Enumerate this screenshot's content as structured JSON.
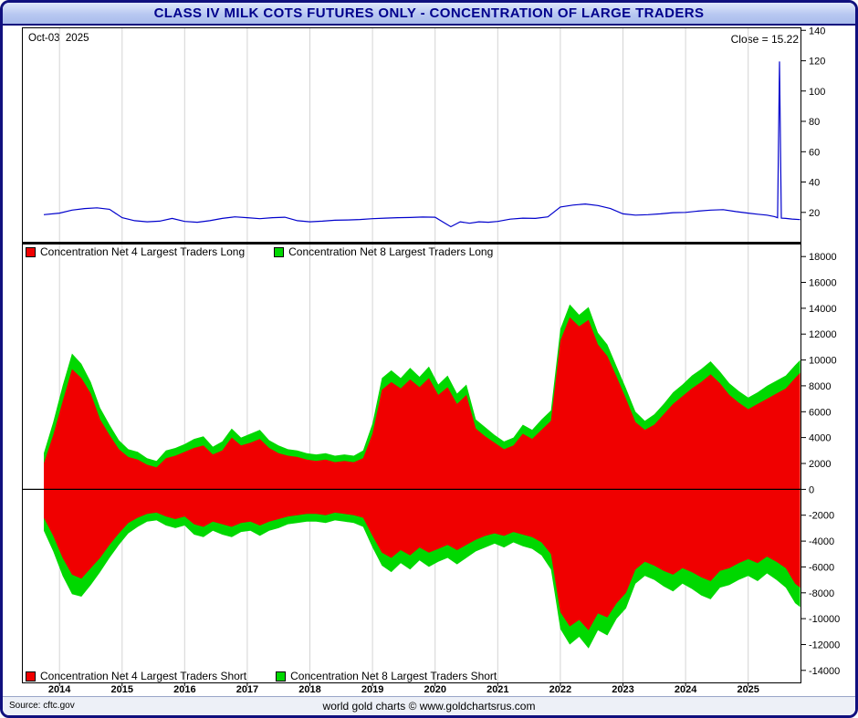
{
  "window": {
    "title": "CLASS IV MILK COTS FUTURES ONLY - CONCENTRATION OF LARGE TRADERS"
  },
  "colors": {
    "title_text": "#00008c",
    "titlebar_border": "#10107e",
    "price_line": "#0000cc",
    "net4_red": "#f00000",
    "net8_green": "#00d800",
    "grid": "#d4d4d4",
    "axis": "#000000",
    "zero_line": "#000000"
  },
  "top_panel": {
    "date_label": "Oct-03  2025",
    "close_label": "Close = 15.22"
  },
  "footer": {
    "source": "Source: cftc.gov",
    "credit": "world gold charts © www.goldchartsrus.com"
  },
  "chart_data": [
    {
      "id": "price-panel",
      "type": "line",
      "title": "Class IV Milk futures price",
      "x_range": [
        2013.4,
        2025.85
      ],
      "ylim": [
        0,
        142
      ],
      "yticks": [
        140,
        120,
        100,
        80,
        60,
        40,
        20
      ],
      "xticks": [
        2014,
        2015,
        2016,
        2017,
        2018,
        2019,
        2020,
        2021,
        2022,
        2023,
        2024,
        2025
      ],
      "grid": "vertical",
      "legend_position": "none",
      "series": [
        {
          "name": "Close",
          "color": "#0000cc",
          "x": [
            2013.75,
            2014.0,
            2014.2,
            2014.4,
            2014.6,
            2014.8,
            2015.0,
            2015.2,
            2015.4,
            2015.6,
            2015.8,
            2016.0,
            2016.2,
            2016.4,
            2016.6,
            2016.8,
            2017.0,
            2017.2,
            2017.4,
            2017.6,
            2017.8,
            2018.0,
            2018.2,
            2018.4,
            2018.6,
            2018.8,
            2019.0,
            2019.2,
            2019.4,
            2019.6,
            2019.8,
            2020.0,
            2020.15,
            2020.25,
            2020.4,
            2020.55,
            2020.7,
            2020.85,
            2021.0,
            2021.2,
            2021.4,
            2021.6,
            2021.8,
            2022.0,
            2022.2,
            2022.4,
            2022.6,
            2022.8,
            2023.0,
            2023.2,
            2023.4,
            2023.6,
            2023.8,
            2024.0,
            2024.2,
            2024.4,
            2024.6,
            2024.8,
            2025.0,
            2025.15,
            2025.3,
            2025.42,
            2025.47,
            2025.5,
            2025.53,
            2025.6,
            2025.7,
            2025.83
          ],
          "y": [
            18.5,
            19.5,
            21.5,
            22.5,
            23.0,
            22.0,
            16.5,
            14.5,
            13.8,
            14.2,
            16.0,
            14.0,
            13.5,
            14.5,
            16.0,
            17.0,
            16.5,
            15.8,
            16.5,
            16.8,
            14.5,
            13.8,
            14.2,
            14.8,
            15.0,
            15.3,
            15.8,
            16.2,
            16.5,
            16.6,
            16.9,
            16.8,
            13.0,
            10.5,
            13.8,
            12.8,
            13.8,
            13.5,
            14.0,
            15.5,
            16.2,
            16.0,
            17.0,
            23.5,
            24.8,
            25.5,
            24.5,
            22.5,
            19.0,
            18.2,
            18.5,
            19.0,
            19.8,
            20.0,
            20.8,
            21.5,
            21.8,
            20.5,
            19.5,
            18.8,
            18.2,
            17.2,
            16.5,
            119.5,
            16.2,
            16.0,
            15.6,
            15.22
          ]
        }
      ]
    },
    {
      "id": "concentration-panel",
      "type": "area",
      "title": "Concentration of Large Traders (contracts)",
      "x_range": [
        2013.4,
        2025.85
      ],
      "ylim": [
        -15000,
        19000
      ],
      "yticks": [
        18000,
        16000,
        14000,
        12000,
        10000,
        8000,
        6000,
        4000,
        2000,
        0,
        -2000,
        -4000,
        -6000,
        -8000,
        -10000,
        -12000,
        -14000
      ],
      "xticks": [
        2014,
        2015,
        2016,
        2017,
        2018,
        2019,
        2020,
        2021,
        2022,
        2023,
        2024,
        2025
      ],
      "grid": "vertical",
      "legend_top": [
        {
          "label": "Concentration Net 4 Largest Traders Long",
          "color": "#f00000"
        },
        {
          "label": "Concentration Net 8 Largest Traders Long",
          "color": "#00d800"
        }
      ],
      "legend_bottom": [
        {
          "label": "Concentration Net 4 Largest Traders Short",
          "color": "#f00000"
        },
        {
          "label": "Concentration Net 8 Largest Traders Short",
          "color": "#00d800"
        }
      ],
      "x": [
        2013.75,
        2013.9,
        2014.05,
        2014.2,
        2014.35,
        2014.5,
        2014.65,
        2014.8,
        2014.95,
        2015.1,
        2015.25,
        2015.4,
        2015.55,
        2015.7,
        2015.85,
        2016.0,
        2016.15,
        2016.3,
        2016.45,
        2016.6,
        2016.75,
        2016.9,
        2017.05,
        2017.2,
        2017.35,
        2017.5,
        2017.65,
        2017.8,
        2017.95,
        2018.1,
        2018.25,
        2018.4,
        2018.55,
        2018.7,
        2018.85,
        2019.0,
        2019.15,
        2019.3,
        2019.45,
        2019.6,
        2019.75,
        2019.9,
        2020.05,
        2020.2,
        2020.35,
        2020.5,
        2020.65,
        2020.8,
        2020.95,
        2021.1,
        2021.25,
        2021.4,
        2021.55,
        2021.7,
        2021.85,
        2022.0,
        2022.15,
        2022.3,
        2022.45,
        2022.6,
        2022.75,
        2022.9,
        2023.05,
        2023.2,
        2023.35,
        2023.5,
        2023.65,
        2023.8,
        2023.95,
        2024.1,
        2024.25,
        2024.4,
        2024.55,
        2024.7,
        2024.85,
        2025.0,
        2025.15,
        2025.3,
        2025.45,
        2025.6,
        2025.75,
        2025.83
      ],
      "series": [
        {
          "key": "long8",
          "name": "Concentration Net 8 Largest Traders Long",
          "color": "#00d800",
          "values": [
            2800,
            5200,
            8000,
            10500,
            9700,
            8300,
            6300,
            5000,
            3800,
            3100,
            2900,
            2400,
            2200,
            3000,
            3200,
            3500,
            3900,
            4100,
            3300,
            3700,
            4700,
            4000,
            4300,
            4600,
            3800,
            3400,
            3100,
            3000,
            2800,
            2700,
            2800,
            2600,
            2700,
            2600,
            3000,
            5100,
            8600,
            9200,
            8600,
            9400,
            8700,
            9500,
            8100,
            8800,
            7400,
            8100,
            5400,
            4800,
            4200,
            3700,
            4000,
            5000,
            4600,
            5400,
            6100,
            12400,
            14300,
            13500,
            14100,
            12100,
            11200,
            9500,
            7800,
            6000,
            5300,
            5800,
            6600,
            7500,
            8100,
            8800,
            9300,
            9900,
            9100,
            8200,
            7600,
            7100,
            7500,
            8000,
            8400,
            8800,
            9600,
            10000
          ]
        },
        {
          "key": "long4",
          "name": "Concentration Net 4 Largest Traders Long",
          "color": "#f00000",
          "values": [
            2000,
            4200,
            6800,
            9300,
            8600,
            7400,
            5400,
            4200,
            3100,
            2500,
            2300,
            1900,
            1700,
            2400,
            2600,
            2900,
            3200,
            3400,
            2700,
            3000,
            4000,
            3400,
            3600,
            3900,
            3200,
            2800,
            2600,
            2500,
            2300,
            2200,
            2300,
            2100,
            2200,
            2100,
            2400,
            4300,
            7700,
            8300,
            7800,
            8500,
            7900,
            8600,
            7300,
            7900,
            6600,
            7300,
            4700,
            4100,
            3600,
            3100,
            3400,
            4300,
            3900,
            4600,
            5300,
            11500,
            13300,
            12600,
            13100,
            11200,
            10300,
            8700,
            7000,
            5200,
            4600,
            5000,
            5800,
            6600,
            7200,
            7800,
            8300,
            8900,
            8200,
            7300,
            6700,
            6200,
            6600,
            7000,
            7400,
            7800,
            8600,
            9000
          ]
        },
        {
          "key": "short8",
          "name": "Concentration Net 8 Largest Traders Short",
          "color": "#00d800",
          "values": [
            -3200,
            -4800,
            -6700,
            -8100,
            -8300,
            -7400,
            -6400,
            -5300,
            -4300,
            -3400,
            -2900,
            -2500,
            -2400,
            -2800,
            -3000,
            -2800,
            -3500,
            -3700,
            -3200,
            -3500,
            -3700,
            -3300,
            -3200,
            -3600,
            -3200,
            -3000,
            -2700,
            -2600,
            -2500,
            -2500,
            -2600,
            -2400,
            -2500,
            -2600,
            -2900,
            -4500,
            -5900,
            -6400,
            -5700,
            -6200,
            -5500,
            -6000,
            -5600,
            -5300,
            -5800,
            -5300,
            -4800,
            -4500,
            -4200,
            -4500,
            -4100,
            -4400,
            -4600,
            -5100,
            -6200,
            -10800,
            -12000,
            -11400,
            -12300,
            -10900,
            -11300,
            -10000,
            -9200,
            -7300,
            -6700,
            -7000,
            -7500,
            -7900,
            -7300,
            -7700,
            -8200,
            -8500,
            -7600,
            -7400,
            -7000,
            -6700,
            -7100,
            -6500,
            -7000,
            -7600,
            -8800,
            -9100
          ]
        },
        {
          "key": "short4",
          "name": "Concentration Net 4 Largest Traders Short",
          "color": "#f00000",
          "values": [
            -2200,
            -3600,
            -5300,
            -6600,
            -6900,
            -6100,
            -5300,
            -4300,
            -3400,
            -2600,
            -2200,
            -1900,
            -1800,
            -2100,
            -2300,
            -2100,
            -2700,
            -2900,
            -2500,
            -2700,
            -2900,
            -2600,
            -2500,
            -2800,
            -2500,
            -2300,
            -2100,
            -2000,
            -1900,
            -1900,
            -2000,
            -1800,
            -1900,
            -2000,
            -2200,
            -3600,
            -4900,
            -5300,
            -4700,
            -5100,
            -4500,
            -4900,
            -4600,
            -4300,
            -4700,
            -4300,
            -3900,
            -3600,
            -3400,
            -3600,
            -3300,
            -3500,
            -3700,
            -4100,
            -5000,
            -9500,
            -10600,
            -10100,
            -10900,
            -9600,
            -9900,
            -8800,
            -8000,
            -6200,
            -5600,
            -5900,
            -6300,
            -6600,
            -6100,
            -6400,
            -6800,
            -7100,
            -6300,
            -6100,
            -5700,
            -5400,
            -5700,
            -5200,
            -5600,
            -6100,
            -7300,
            -7600
          ]
        }
      ]
    }
  ]
}
